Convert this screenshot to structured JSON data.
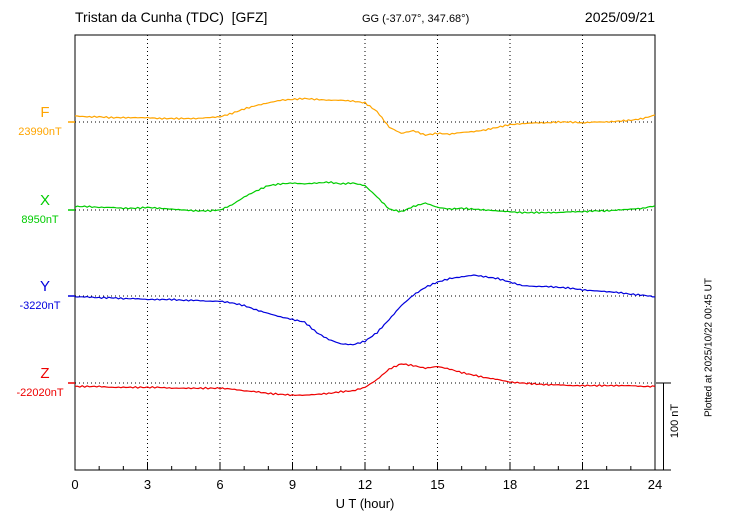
{
  "header": {
    "station_title": "Tristan da Cunha (TDC)  [GFZ]",
    "coords": "GG (-37.07°, 347.68°)",
    "date": "2025/09/21"
  },
  "axis": {
    "xlabel": "U T (hour)",
    "x_ticks": [
      0,
      3,
      6,
      9,
      12,
      15,
      18,
      21,
      24
    ]
  },
  "scale_bar": {
    "label": "100 nT",
    "nT": 100
  },
  "plotted_at": "Plotted at 2025/10/22 00:45 UT",
  "chart_data": {
    "type": "line",
    "title": "Tristan da Cunha (TDC) [GFZ] magnetogram 2025/09/21",
    "xlabel": "U T (hour)",
    "xlim": [
      0,
      24
    ],
    "x_step": 0.5,
    "grid": "dotted vertical every 3 h, dotted horizontal baseline per component",
    "legend_position": "left margin, one colored label per trace",
    "series": [
      {
        "name": "F",
        "color": "#ffa500",
        "baseline_label": "23990nT",
        "baseline_nT": 23990,
        "values": [
          7,
          6,
          6,
          5,
          5,
          5,
          5,
          4,
          4,
          4,
          4,
          5,
          6,
          10,
          15,
          19,
          22,
          25,
          26,
          27,
          26,
          25,
          25,
          24,
          22,
          12,
          -6,
          -13,
          -10,
          -15,
          -13,
          -14,
          -12,
          -11,
          -9,
          -6,
          -3,
          -2,
          -1,
          -1,
          0,
          0,
          -1,
          0,
          0,
          1,
          2,
          4,
          8
        ]
      },
      {
        "name": "X",
        "color": "#00cc00",
        "baseline_label": "8950nT",
        "baseline_nT": 8950,
        "values": [
          4,
          4,
          3,
          3,
          2,
          2,
          3,
          2,
          1,
          0,
          -1,
          -1,
          0,
          6,
          15,
          22,
          28,
          30,
          31,
          30,
          31,
          32,
          30,
          31,
          28,
          15,
          1,
          -2,
          4,
          8,
          3,
          1,
          2,
          1,
          0,
          -1,
          -2,
          -3,
          -3,
          -3,
          -3,
          -2,
          -2,
          -1,
          -1,
          0,
          1,
          2,
          5
        ]
      },
      {
        "name": "Y",
        "color": "#0000dd",
        "baseline_label": "-3220nT",
        "baseline_nT": -3220,
        "values": [
          -1,
          -1,
          -2,
          -2,
          -3,
          -3,
          -4,
          -4,
          -4,
          -5,
          -5,
          -6,
          -6,
          -8,
          -11,
          -16,
          -20,
          -24,
          -27,
          -30,
          -42,
          -50,
          -55,
          -56,
          -52,
          -42,
          -27,
          -11,
          1,
          10,
          16,
          20,
          22,
          24,
          22,
          20,
          16,
          12,
          11,
          11,
          10,
          9,
          7,
          6,
          5,
          4,
          2,
          1,
          -1
        ]
      },
      {
        "name": "Z",
        "color": "#ee0000",
        "baseline_label": "-22020nT",
        "baseline_nT": -22020,
        "values": [
          -4,
          -4,
          -4,
          -5,
          -5,
          -5,
          -5,
          -5,
          -6,
          -6,
          -6,
          -6,
          -6,
          -7,
          -9,
          -10,
          -12,
          -13,
          -14,
          -14,
          -13,
          -12,
          -10,
          -9,
          -5,
          4,
          16,
          22,
          20,
          17,
          19,
          16,
          12,
          9,
          6,
          4,
          1,
          0,
          -1,
          -2,
          -2,
          -3,
          -3,
          -3,
          -3,
          -3,
          -3,
          -4,
          -4
        ]
      }
    ]
  }
}
